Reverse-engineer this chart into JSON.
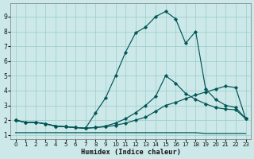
{
  "xlabel": "Humidex (Indice chaleur)",
  "bg_color": "#cce8e8",
  "grid_color": "#99cccc",
  "line_color": "#005555",
  "xlim": [
    -0.5,
    23.5
  ],
  "ylim": [
    0.7,
    9.9
  ],
  "xticks": [
    0,
    1,
    2,
    3,
    4,
    5,
    6,
    7,
    8,
    9,
    10,
    11,
    12,
    13,
    14,
    15,
    16,
    17,
    18,
    19,
    20,
    21,
    22,
    23
  ],
  "yticks": [
    1,
    2,
    3,
    4,
    5,
    6,
    7,
    8,
    9
  ],
  "curve1_x": [
    0,
    1,
    2,
    3,
    4,
    5,
    6,
    7,
    8,
    9,
    10,
    11,
    12,
    13,
    14,
    15,
    16,
    17,
    18,
    19,
    20,
    21,
    22,
    23
  ],
  "curve1_y": [
    2.0,
    1.85,
    1.85,
    1.75,
    1.6,
    1.55,
    1.5,
    1.45,
    2.5,
    3.5,
    5.0,
    6.6,
    7.9,
    8.3,
    9.0,
    9.35,
    8.85,
    7.2,
    8.0,
    4.1,
    3.4,
    3.0,
    2.85,
    2.1
  ],
  "curve2_x": [
    0,
    1,
    2,
    3,
    4,
    5,
    6,
    7,
    8,
    9,
    10,
    11,
    12,
    13,
    14,
    15,
    16,
    17,
    18,
    19,
    20,
    21,
    22,
    23
  ],
  "curve2_y": [
    2.0,
    1.85,
    1.85,
    1.75,
    1.6,
    1.55,
    1.5,
    1.45,
    1.5,
    1.6,
    1.8,
    2.1,
    2.5,
    3.0,
    3.6,
    5.0,
    4.5,
    3.8,
    3.4,
    3.1,
    2.85,
    2.75,
    2.7,
    2.1
  ],
  "curve3_x": [
    0,
    1,
    2,
    3,
    4,
    5,
    6,
    7,
    8,
    9,
    10,
    11,
    12,
    13,
    14,
    15,
    16,
    17,
    18,
    19,
    20,
    21,
    22,
    23
  ],
  "curve3_y": [
    2.0,
    1.85,
    1.85,
    1.75,
    1.6,
    1.55,
    1.5,
    1.45,
    1.5,
    1.55,
    1.65,
    1.8,
    2.0,
    2.2,
    2.6,
    3.0,
    3.2,
    3.45,
    3.7,
    3.9,
    4.1,
    4.3,
    4.2,
    2.1
  ],
  "curve4_x": [
    0,
    1,
    2,
    3,
    4,
    5,
    6,
    7,
    8,
    9,
    10,
    11,
    12,
    13,
    14,
    15,
    16,
    17,
    18,
    19,
    20,
    21,
    22,
    23
  ],
  "curve4_y": [
    1.15,
    1.15,
    1.15,
    1.15,
    1.15,
    1.15,
    1.15,
    1.15,
    1.15,
    1.15,
    1.15,
    1.15,
    1.15,
    1.15,
    1.15,
    1.15,
    1.15,
    1.15,
    1.15,
    1.1,
    1.1,
    1.1,
    1.1,
    1.1
  ]
}
